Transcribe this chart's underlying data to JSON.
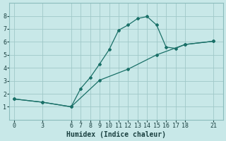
{
  "xlabel": "Humidex (Indice chaleur)",
  "bg_color": "#c8e8e8",
  "grid_color": "#a0c8c8",
  "line_color": "#1a7068",
  "line1_x": [
    0,
    3,
    6,
    7,
    8,
    9,
    10,
    11,
    12,
    13,
    14,
    15,
    16,
    17,
    18,
    21
  ],
  "line1_y": [
    1.6,
    1.35,
    1.0,
    2.4,
    3.25,
    4.3,
    5.4,
    6.9,
    7.3,
    7.8,
    7.95,
    7.3,
    5.6,
    5.5,
    5.8,
    6.05
  ],
  "line2_x": [
    0,
    3,
    6,
    9,
    12,
    15,
    18,
    21
  ],
  "line2_y": [
    1.6,
    1.35,
    1.0,
    3.05,
    3.9,
    5.0,
    5.8,
    6.05
  ],
  "xlim": [
    -0.5,
    22
  ],
  "ylim": [
    0,
    9
  ],
  "xticks": [
    0,
    3,
    6,
    7,
    8,
    9,
    10,
    11,
    12,
    13,
    14,
    15,
    16,
    17,
    18,
    21
  ],
  "yticks": [
    1,
    2,
    3,
    4,
    5,
    6,
    7,
    8
  ],
  "xlabel_fontsize": 7,
  "tick_fontsize": 6
}
